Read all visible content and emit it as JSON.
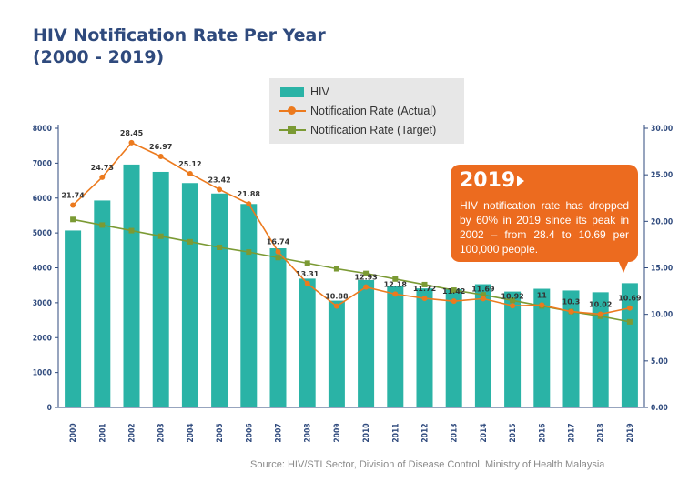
{
  "title": {
    "line1": "HIV Notification Rate Per Year",
    "line2": "(2000 - 2019)"
  },
  "legend": {
    "hiv": "HIV",
    "actual": "Notification Rate (Actual)",
    "target": "Notification Rate (Target)"
  },
  "callout": {
    "year": "2019",
    "text": "HIV notification rate has dropped by 60% in 2019 since its peak in 2002 – from 28.4 to 10.69 per 100,000 people."
  },
  "source": "Source: HIV/STI Sector, Division of Disease Control, Ministry of Health Malaysia",
  "colors": {
    "bar": "#2ab3a6",
    "actual": "#ec7a1e",
    "target": "#7b9a34",
    "axis": "#2f4a7d",
    "callout": "#ec6b1f"
  },
  "chart_data": {
    "type": "bar",
    "title": "HIV Notification Rate Per Year (2000 - 2019)",
    "categories": [
      "2000",
      "2001",
      "2002",
      "2003",
      "2004",
      "2005",
      "2006",
      "2007",
      "2008",
      "2009",
      "2010",
      "2011",
      "2012",
      "2013",
      "2014",
      "2015",
      "2016",
      "2017",
      "2018",
      "2019"
    ],
    "left_axis": {
      "ylim": [
        0,
        8000
      ],
      "ticks": [
        "0",
        "1000",
        "2000",
        "3000",
        "4000",
        "5000",
        "6000",
        "7000",
        "8000"
      ]
    },
    "right_axis": {
      "ylim": [
        0,
        30
      ],
      "ticks": [
        "0.00",
        "5.00",
        "10.00",
        "15.00",
        "20.00",
        "25.00",
        "30.00"
      ]
    },
    "series": [
      {
        "name": "HIV",
        "type": "bar",
        "axis": "left",
        "values": [
          5070,
          5930,
          6960,
          6750,
          6430,
          6130,
          5830,
          4560,
          3690,
          3060,
          3650,
          3490,
          3410,
          3390,
          3530,
          3320,
          3400,
          3350,
          3300,
          3560
        ]
      },
      {
        "name": "Notification Rate (Actual)",
        "type": "line",
        "axis": "right",
        "values": [
          21.74,
          24.73,
          28.45,
          26.97,
          25.12,
          23.42,
          21.88,
          16.74,
          13.31,
          10.88,
          12.93,
          12.18,
          11.72,
          11.42,
          11.69,
          10.92,
          11,
          10.3,
          10.02,
          10.69
        ],
        "labels": [
          "21.74",
          "24.73",
          "28.45",
          "26.97",
          "25.12",
          "23.42",
          "21.88",
          "16.74",
          "13.31",
          "10.88",
          "12.93",
          "12.18",
          "11.72",
          "11.42",
          "11.69",
          "10.92",
          "11",
          "10.3",
          "10.02",
          "10.69"
        ]
      },
      {
        "name": "Notification Rate (Target)",
        "type": "line",
        "axis": "right",
        "values": [
          20.2,
          19.6,
          19.0,
          18.4,
          17.8,
          17.2,
          16.7,
          16.1,
          15.5,
          14.9,
          14.4,
          13.8,
          13.2,
          12.6,
          12.1,
          11.5,
          10.9,
          10.3,
          9.8,
          9.2
        ]
      }
    ]
  }
}
